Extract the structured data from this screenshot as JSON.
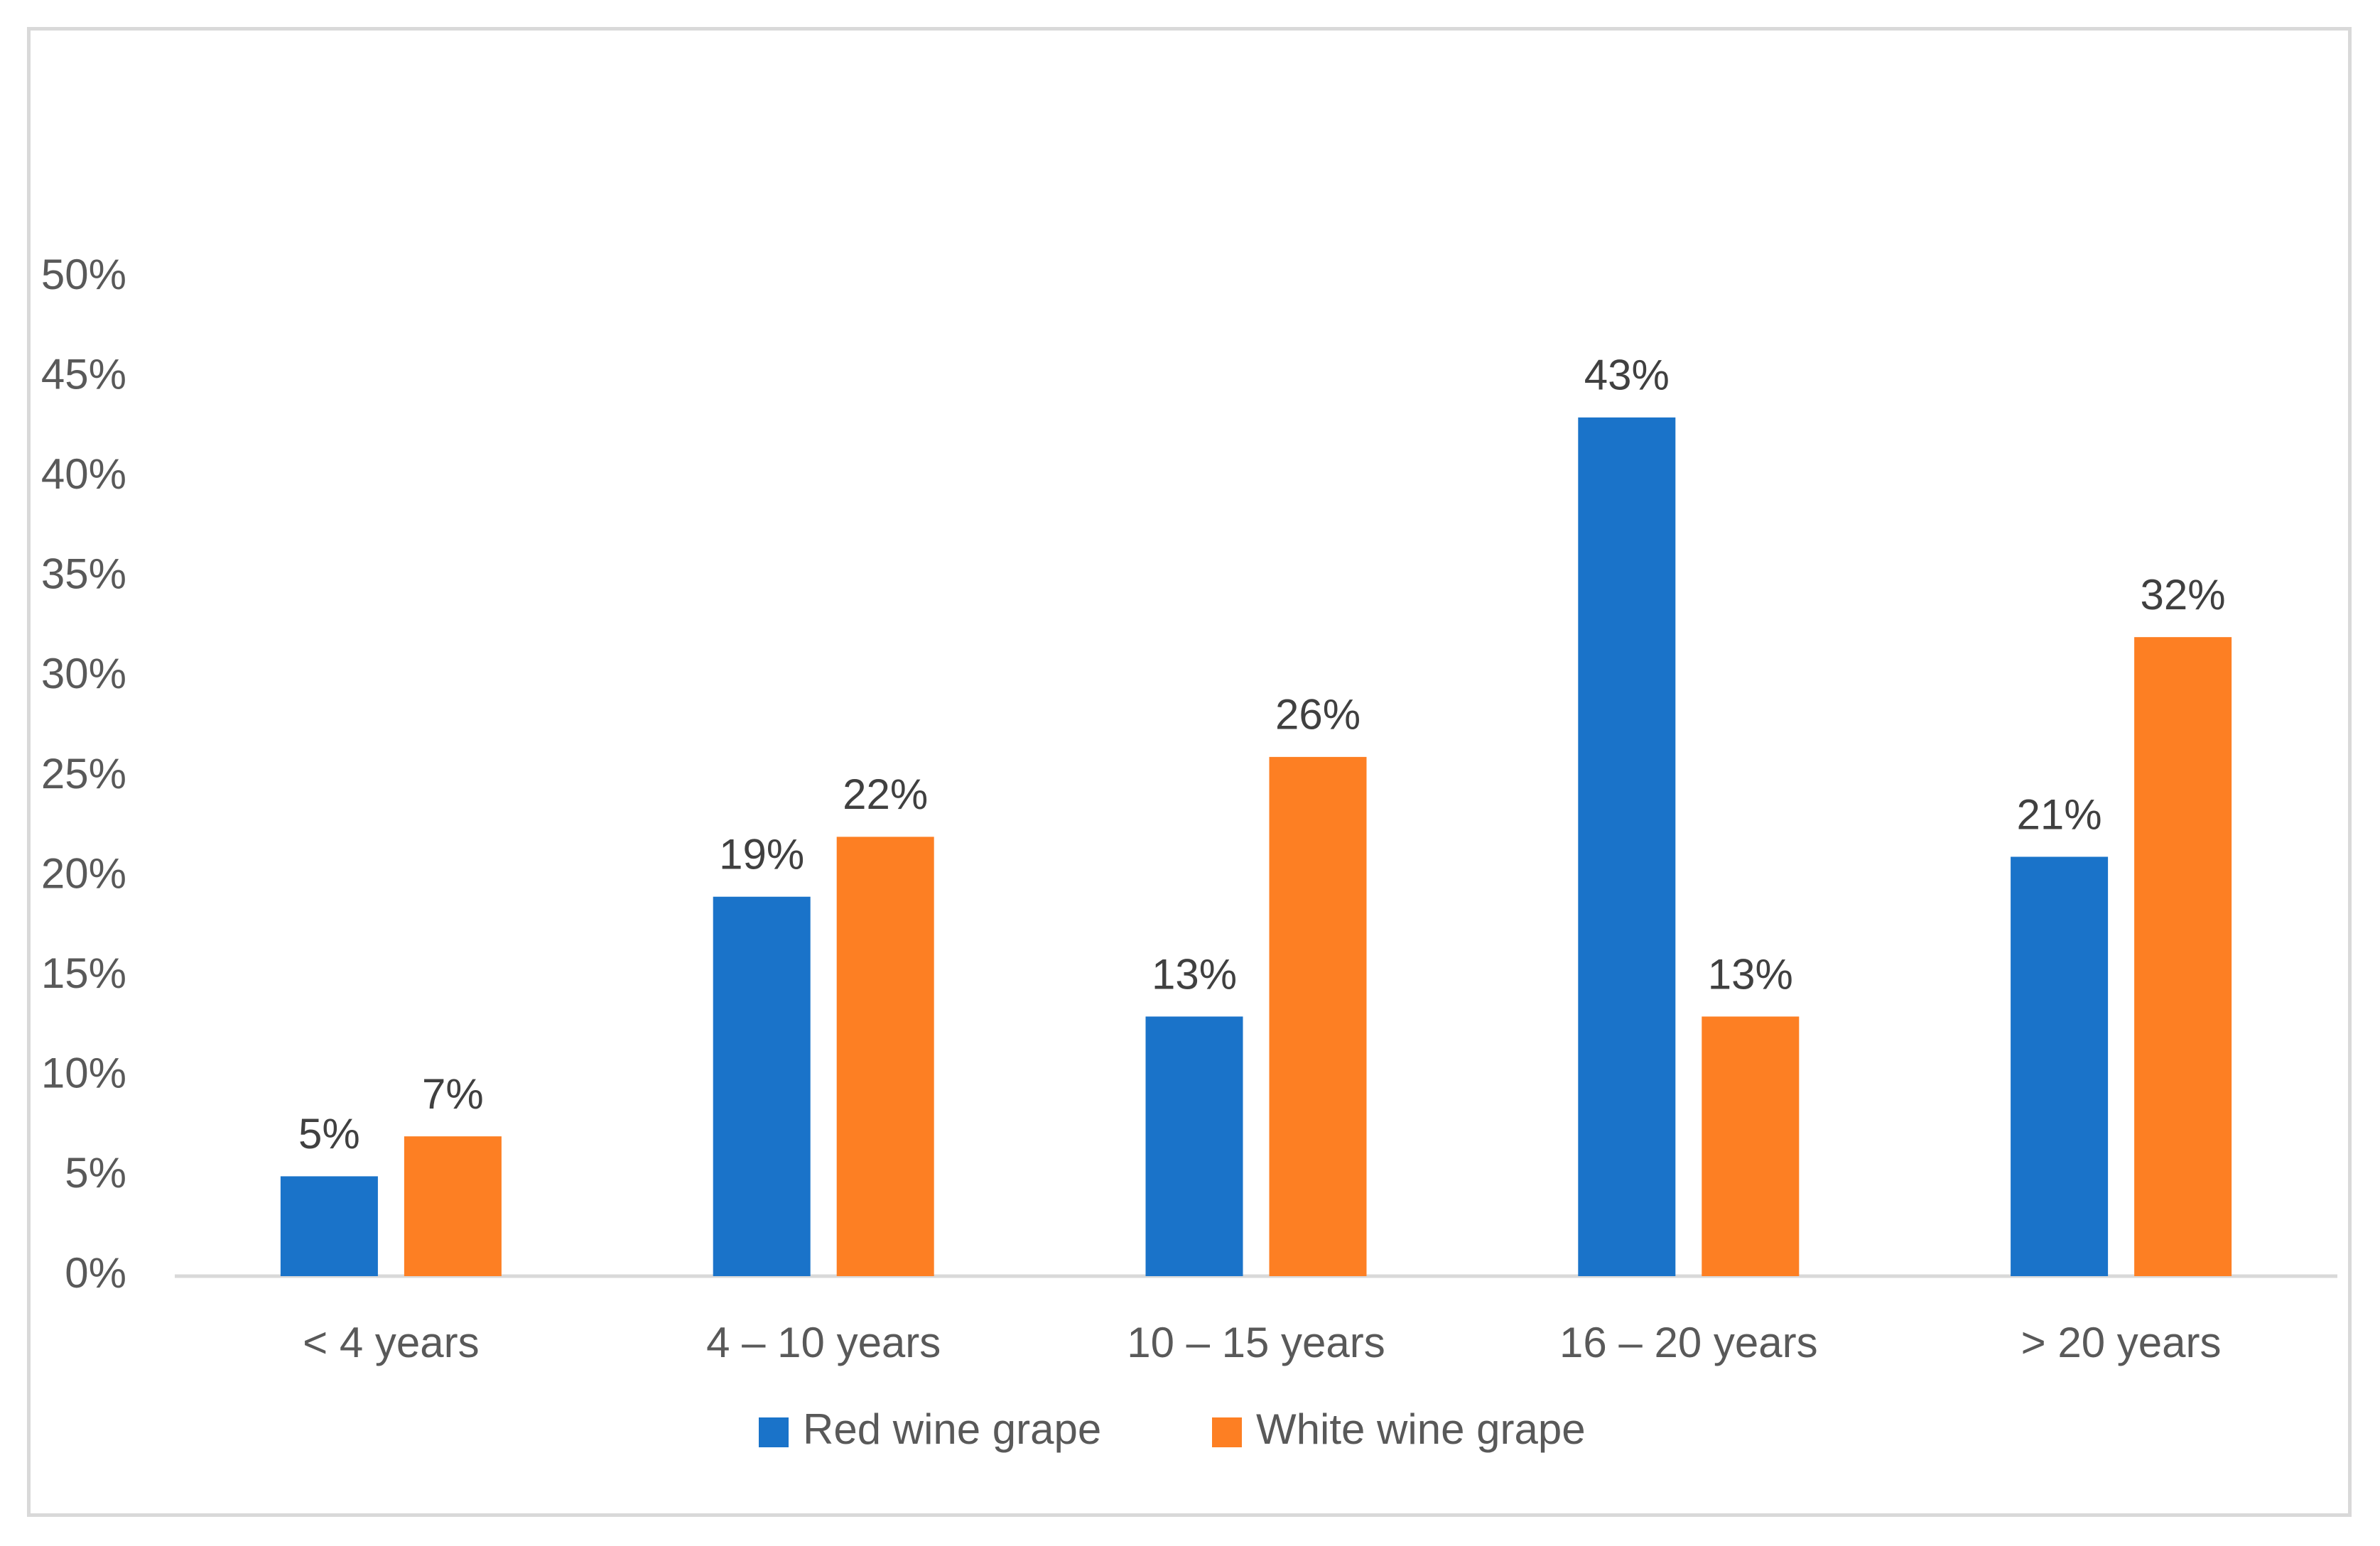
{
  "chart_data": {
    "type": "bar",
    "title": "",
    "xlabel": "",
    "ylabel": "",
    "categories": [
      "< 4 years",
      "4 – 10 years",
      "10 – 15 years",
      "16 – 20 years",
      "> 20 years"
    ],
    "series": [
      {
        "name": "Red wine grape",
        "color": "#1a73c9",
        "values": [
          5,
          19,
          13,
          43,
          21
        ],
        "labels": [
          "5%",
          "19%",
          "13%",
          "43%",
          "21%"
        ]
      },
      {
        "name": "White wine grape",
        "color": "#fd7f23",
        "values": [
          7,
          22,
          26,
          13,
          32
        ],
        "labels": [
          "7%",
          "22%",
          "26%",
          "13%",
          "32%"
        ]
      }
    ],
    "ylim": [
      0,
      50
    ],
    "yticks": [
      0,
      5,
      10,
      15,
      20,
      25,
      30,
      35,
      40,
      45,
      50
    ],
    "ytick_labels": [
      "0%",
      "5%",
      "10%",
      "15%",
      "20%",
      "25%",
      "30%",
      "35%",
      "40%",
      "45%",
      "50%"
    ],
    "grid": false,
    "legend_position": "bottom"
  }
}
